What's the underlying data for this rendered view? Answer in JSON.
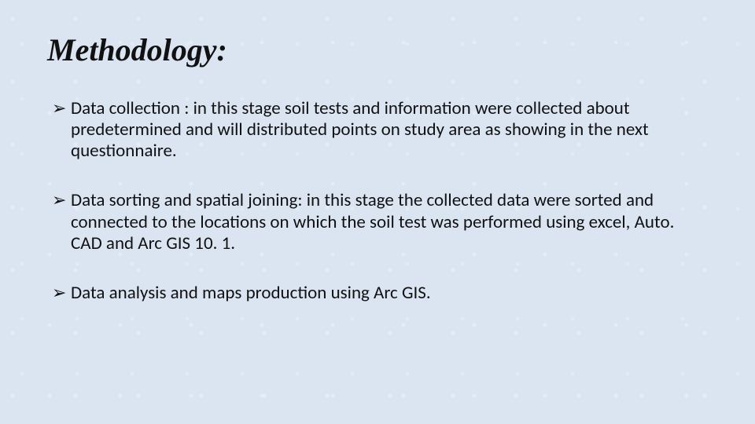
{
  "slide": {
    "title": "Methodology:",
    "title_font_family": "Times New Roman",
    "title_font_style": "italic bold",
    "title_font_size_pt": 30,
    "body_font_family": "Calibri",
    "body_font_size_pt": 17,
    "bullet_glyph": "➢",
    "bullet_color": "#111111",
    "text_color": "#111111",
    "background_color": "#dbe5f2",
    "bullets": [
      "Data collection : in this stage soil tests and information were collected about predetermined and will distributed points on study area as showing in the next questionnaire.",
      "Data sorting and spatial joining: in this stage the collected data were sorted and connected to the locations on which the soil test was performed using excel, Auto. CAD and Arc GIS 10. 1.",
      "Data analysis and maps production using Arc GIS."
    ]
  }
}
